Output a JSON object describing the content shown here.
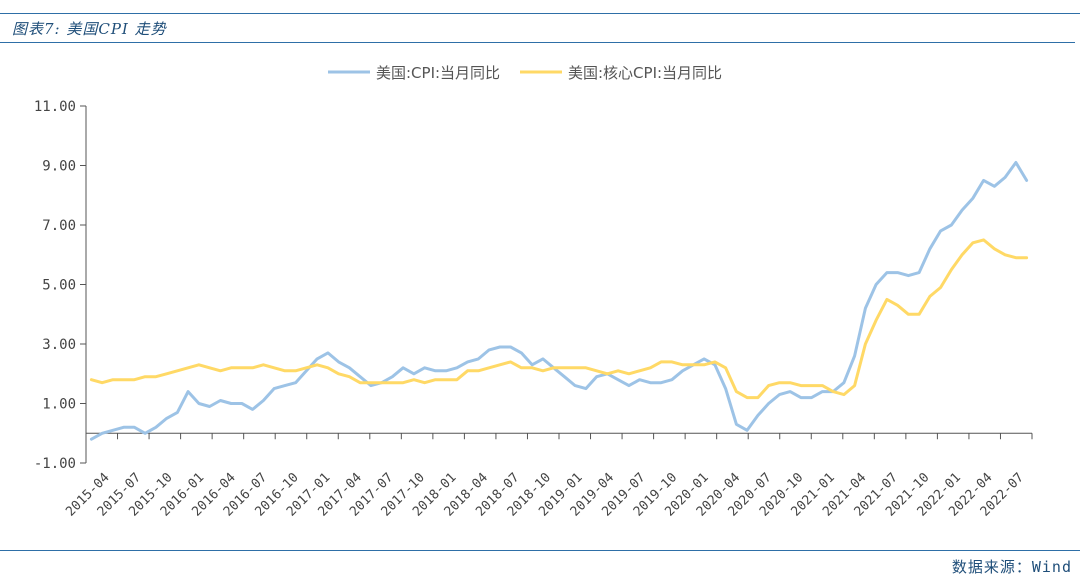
{
  "figure": {
    "title": "图表7: 美国CPI 走势",
    "source": "数据来源：Wind"
  },
  "chart_data": {
    "type": "line",
    "title": "",
    "xlabel": "",
    "ylabel": "",
    "ylim": [
      -1,
      11
    ],
    "yticks": [
      -1,
      1,
      3,
      5,
      7,
      9,
      11
    ],
    "ytick_labels": [
      "-1.00",
      "1.00",
      "3.00",
      "5.00",
      "7.00",
      "9.00",
      "11.00"
    ],
    "xtick_labels": [
      "2015-04",
      "2015-07",
      "2015-10",
      "2016-01",
      "2016-04",
      "2016-07",
      "2016-10",
      "2017-01",
      "2017-04",
      "2017-07",
      "2017-10",
      "2018-01",
      "2018-04",
      "2018-07",
      "2018-10",
      "2019-01",
      "2019-04",
      "2019-07",
      "2019-10",
      "2020-01",
      "2020-04",
      "2020-07",
      "2020-10",
      "2021-01",
      "2021-04",
      "2021-07",
      "2021-10",
      "2022-01",
      "2022-04",
      "2022-07"
    ],
    "x_start": "2015-04",
    "x_end": "2022-07",
    "grid": false,
    "legend_position": "top-center",
    "series": [
      {
        "name": "美国:CPI:当月同比",
        "color": "#9dc3e6",
        "values": [
          -0.2,
          -0.0,
          0.1,
          0.2,
          0.2,
          0.0,
          0.2,
          0.5,
          0.7,
          1.4,
          1.0,
          0.9,
          1.1,
          1.0,
          1.0,
          0.8,
          1.1,
          1.5,
          1.6,
          1.7,
          2.1,
          2.5,
          2.7,
          2.4,
          2.2,
          1.9,
          1.6,
          1.7,
          1.9,
          2.2,
          2.0,
          2.2,
          2.1,
          2.1,
          2.2,
          2.4,
          2.5,
          2.8,
          2.9,
          2.9,
          2.7,
          2.3,
          2.5,
          2.2,
          1.9,
          1.6,
          1.5,
          1.9,
          2.0,
          1.8,
          1.6,
          1.8,
          1.7,
          1.7,
          1.8,
          2.1,
          2.3,
          2.5,
          2.3,
          1.5,
          0.3,
          0.1,
          0.6,
          1.0,
          1.3,
          1.4,
          1.2,
          1.2,
          1.4,
          1.4,
          1.7,
          2.6,
          4.2,
          5.0,
          5.4,
          5.4,
          5.3,
          5.4,
          6.2,
          6.8,
          7.0,
          7.5,
          7.9,
          8.5,
          8.3,
          8.6,
          9.1,
          8.5
        ]
      },
      {
        "name": "美国:核心CPI:当月同比",
        "color": "#ffd966",
        "values": [
          1.8,
          1.7,
          1.8,
          1.8,
          1.8,
          1.9,
          1.9,
          2.0,
          2.1,
          2.2,
          2.3,
          2.2,
          2.1,
          2.2,
          2.2,
          2.2,
          2.3,
          2.2,
          2.1,
          2.1,
          2.2,
          2.3,
          2.2,
          2.0,
          1.9,
          1.7,
          1.7,
          1.7,
          1.7,
          1.7,
          1.8,
          1.7,
          1.8,
          1.8,
          1.8,
          2.1,
          2.1,
          2.2,
          2.3,
          2.4,
          2.2,
          2.2,
          2.1,
          2.2,
          2.2,
          2.2,
          2.2,
          2.1,
          2.0,
          2.1,
          2.0,
          2.1,
          2.2,
          2.4,
          2.4,
          2.3,
          2.3,
          2.3,
          2.4,
          2.2,
          1.4,
          1.2,
          1.2,
          1.6,
          1.7,
          1.7,
          1.6,
          1.6,
          1.6,
          1.4,
          1.3,
          1.6,
          3.0,
          3.8,
          4.5,
          4.3,
          4.0,
          4.0,
          4.6,
          4.9,
          5.5,
          6.0,
          6.4,
          6.5,
          6.2,
          6.0,
          5.9,
          5.9
        ]
      }
    ]
  }
}
